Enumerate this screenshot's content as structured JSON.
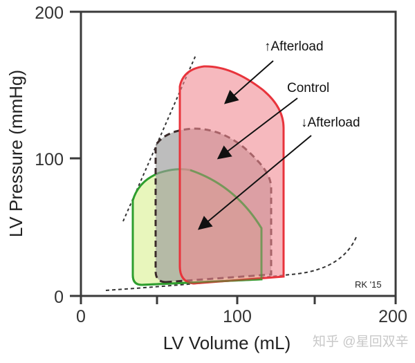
{
  "axes": {
    "xlabel": "LV Volume (mL)",
    "ylabel": "LV Pressure (mmHg)",
    "xticks": [
      "0",
      "100",
      "200"
    ],
    "yticks": [
      "0",
      "100",
      "200"
    ],
    "xlim": [
      0,
      200
    ],
    "ylim": [
      0,
      200
    ]
  },
  "loops": [
    {
      "label": "↑Afterload",
      "color": "#e8343c",
      "fill": "#f39aa0",
      "peak_pressure_mmHg": 162
    },
    {
      "label": "Control",
      "color": "#3a2a2a",
      "fill": "#a8a8a8",
      "peak_pressure_mmHg": 120
    },
    {
      "label": "↓Afterload",
      "color": "#2e9e2e",
      "fill": "#e4f5b0",
      "peak_pressure_mmHg": 92
    }
  ],
  "signature": "RK '15",
  "watermark": "知乎 @星回双辛"
}
